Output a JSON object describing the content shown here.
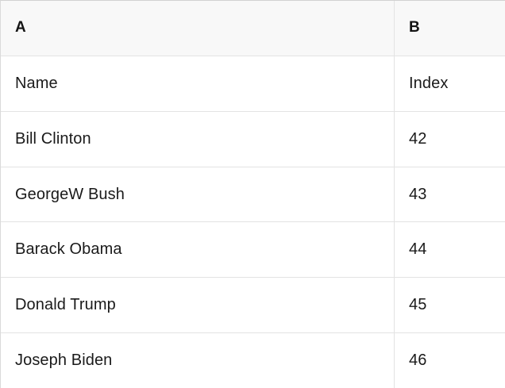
{
  "table": {
    "columns": [
      {
        "label": "A"
      },
      {
        "label": "B"
      }
    ],
    "rows": [
      [
        "Name",
        "Index"
      ],
      [
        "Bill Clinton",
        "42"
      ],
      [
        "GeorgeW Bush",
        "43"
      ],
      [
        "Barack Obama",
        "44"
      ],
      [
        "Donald Trump",
        "45"
      ],
      [
        "Joseph Biden",
        "46"
      ]
    ]
  },
  "colors": {
    "header_bg": "#f8f8f8",
    "cell_bg": "#ffffff",
    "inner_border": "#e3e3e3",
    "outer_border_top": "#d2d2d2",
    "outer_border_left": "#dadada",
    "text": "#1a1a1a"
  }
}
